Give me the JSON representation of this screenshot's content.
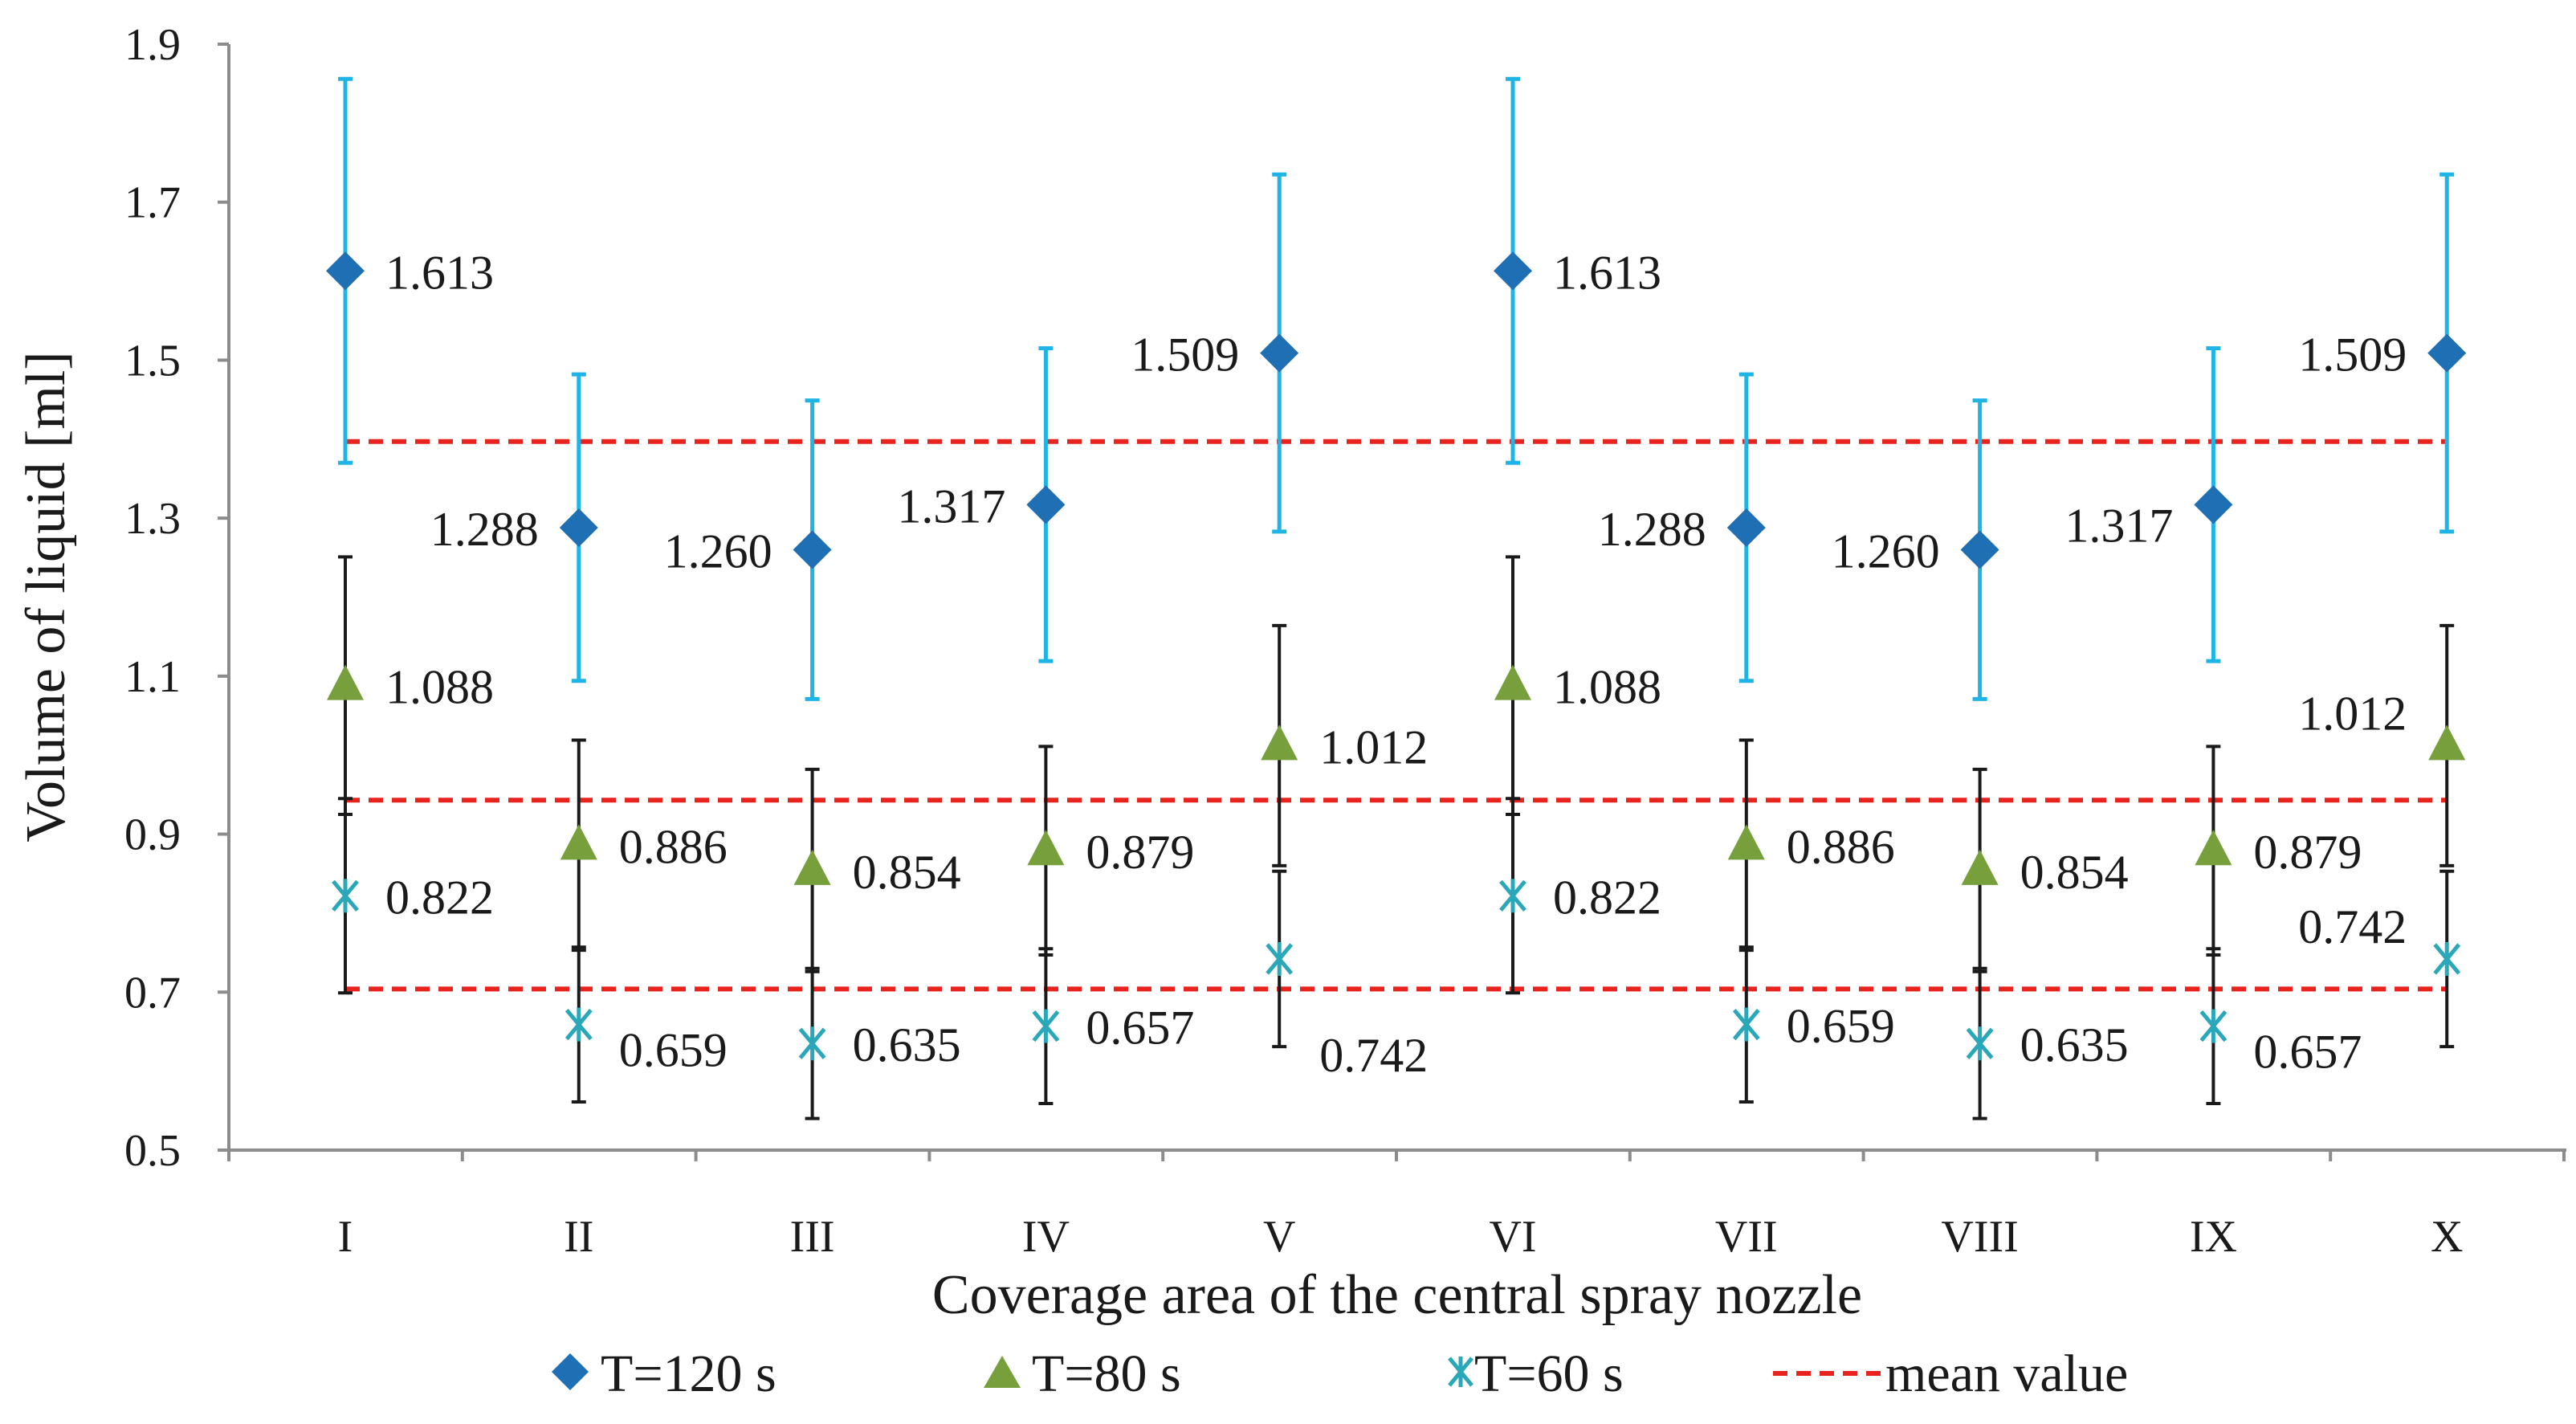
{
  "chart_data": {
    "type": "scatter",
    "title": "",
    "xlabel": "Coverage area of the central spray nozzle",
    "ylabel": "Volume of liquid [ml]",
    "ylim": [
      0.5,
      1.9
    ],
    "yticks": [
      0.5,
      0.7,
      0.9,
      1.1,
      1.3,
      1.5,
      1.7,
      1.9
    ],
    "ytick_labels": [
      "0.5",
      "0.7",
      "0.9",
      "1.1",
      "1.3",
      "1.5",
      "1.7",
      "1.9"
    ],
    "categories": [
      "I",
      "II",
      "III",
      "IV",
      "V",
      "VI",
      "VII",
      "VIII",
      "IX",
      "X"
    ],
    "grid": false,
    "legend_position": "bottom",
    "series": [
      {
        "name": "T=120 s",
        "marker": "diamond",
        "color": "#1F6FB4",
        "error_color": "#1FB4E6",
        "values": [
          1.613,
          1.288,
          1.26,
          1.317,
          1.509,
          1.613,
          1.288,
          1.26,
          1.317,
          1.509
        ],
        "labels": [
          "1.613",
          "1.288",
          "1.260",
          "1.317",
          "1.509",
          "1.613",
          "1.288",
          "1.260",
          "1.317",
          "1.509"
        ],
        "label_sides": [
          "right",
          "left",
          "left",
          "left",
          "left",
          "right",
          "left",
          "left",
          "left-below",
          "left"
        ],
        "errors": [
          0.243,
          0.194,
          0.189,
          0.198,
          0.226,
          0.243,
          0.194,
          0.189,
          0.198,
          0.226
        ]
      },
      {
        "name": "T=80 s",
        "marker": "triangle",
        "color": "#77A03C",
        "error_color": "#1a1a1a",
        "values": [
          1.088,
          0.886,
          0.854,
          0.879,
          1.012,
          1.088,
          0.886,
          0.854,
          0.879,
          1.012
        ],
        "labels": [
          "1.088",
          "0.886",
          "0.854",
          "0.879",
          "1.012",
          "1.088",
          "0.886",
          "0.854",
          "0.879",
          "1.012"
        ],
        "label_sides": [
          "right",
          "right",
          "right",
          "right",
          "right",
          "right",
          "right",
          "right",
          "right",
          "left-above"
        ],
        "errors": [
          0.163,
          0.133,
          0.128,
          0.132,
          0.152,
          0.163,
          0.133,
          0.128,
          0.132,
          0.152
        ]
      },
      {
        "name": "T=60 s",
        "marker": "asterisk",
        "color": "#2AA7B8",
        "error_color": "#1a1a1a",
        "values": [
          0.822,
          0.659,
          0.635,
          0.657,
          0.742,
          0.822,
          0.659,
          0.635,
          0.657,
          0.742
        ],
        "labels": [
          "0.822",
          "0.659",
          "0.635",
          "0.657",
          "0.742",
          "0.822",
          "0.659",
          "0.635",
          "0.657",
          "0.742"
        ],
        "label_sides": [
          "right",
          "right-below",
          "right",
          "right",
          "right-far-below",
          "right",
          "right",
          "right",
          "right-below",
          "left-above"
        ],
        "errors": [
          0.123,
          0.098,
          0.095,
          0.098,
          0.111,
          0.123,
          0.098,
          0.095,
          0.098,
          0.111
        ]
      }
    ],
    "mean_lines": {
      "name": "mean value",
      "color": "#E8231E",
      "values": [
        1.397,
        0.943,
        0.704
      ]
    }
  }
}
